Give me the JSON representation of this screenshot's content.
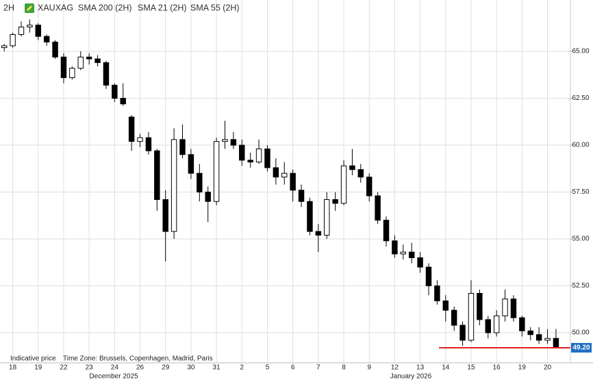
{
  "header": {
    "interval": "2H",
    "symbol": "XAUXAG",
    "indicators": [
      "SMA 200 (2H)",
      "SMA 21 (2H)",
      "SMA 55 (2H)"
    ]
  },
  "footer": {
    "note": "Indicative price",
    "timezone": "Time Zone: Brussels, Copenhagen, Madrid, Paris"
  },
  "chart_data": {
    "type": "candlestick",
    "categories": [
      null,
      "18",
      null,
      null,
      "19",
      null,
      null,
      "22",
      null,
      null,
      "23",
      null,
      null,
      "24",
      null,
      null,
      "26",
      null,
      null,
      "29",
      null,
      null,
      "30",
      null,
      null,
      "31",
      null,
      null,
      "2",
      null,
      null,
      "5",
      null,
      null,
      "6",
      null,
      null,
      "7",
      null,
      null,
      "8",
      null,
      null,
      "9",
      null,
      null,
      "12",
      null,
      null,
      "13",
      null,
      null,
      "14",
      null,
      null,
      "15",
      null,
      null,
      "16",
      null,
      null,
      "19",
      null,
      null,
      "20",
      null
    ],
    "months": [
      "December 2025",
      "January 2026"
    ],
    "open": [
      65.2,
      65.3,
      65.9,
      66.3,
      66.4,
      65.8,
      65.5,
      64.7,
      63.6,
      64.1,
      64.7,
      64.6,
      64.4,
      63.2,
      62.5,
      61.5,
      60.2,
      60.4,
      59.7,
      57.1,
      55.4,
      60.3,
      59.5,
      58.5,
      57.5,
      57.0,
      60.2,
      60.3,
      60.0,
      59.2,
      59.1,
      59.8,
      58.8,
      58.3,
      58.5,
      57.6,
      57.0,
      55.4,
      55.2,
      57.1,
      56.9,
      58.9,
      58.7,
      58.3,
      57.3,
      56.0,
      54.9,
      54.2,
      54.3,
      54.0,
      53.5,
      52.5,
      51.7,
      51.2,
      50.4,
      49.6,
      52.1,
      50.7,
      50.0,
      50.9,
      51.8,
      50.8,
      50.1,
      49.9,
      49.6,
      49.7
    ],
    "high": [
      65.4,
      66.0,
      66.6,
      66.7,
      66.5,
      65.9,
      65.6,
      64.9,
      64.2,
      65.0,
      64.9,
      64.8,
      64.5,
      63.3,
      63.3,
      61.6,
      60.6,
      60.7,
      59.8,
      57.6,
      60.9,
      61.1,
      59.8,
      59.0,
      57.8,
      60.4,
      61.3,
      60.7,
      60.3,
      59.6,
      60.3,
      60.0,
      59.3,
      59.1,
      58.7,
      57.9,
      57.2,
      55.8,
      57.5,
      57.5,
      59.2,
      59.8,
      59.0,
      58.5,
      57.5,
      56.2,
      55.2,
      54.7,
      54.8,
      54.3,
      53.7,
      52.8,
      52.0,
      51.4,
      50.6,
      52.8,
      52.3,
      50.9,
      51.2,
      52.3,
      52.0,
      50.9,
      50.3,
      50.3,
      50.2,
      50.2
    ],
    "low": [
      65.0,
      65.2,
      65.8,
      66.0,
      65.6,
      65.3,
      64.6,
      63.3,
      63.5,
      64.0,
      64.3,
      64.2,
      63.0,
      62.3,
      62.1,
      59.7,
      59.9,
      59.5,
      56.5,
      53.8,
      55.0,
      59.3,
      58.2,
      57.0,
      55.9,
      56.8,
      59.8,
      59.8,
      58.9,
      58.8,
      59.0,
      58.6,
      57.9,
      57.9,
      57.0,
      56.7,
      55.2,
      54.3,
      55.0,
      56.5,
      56.8,
      58.4,
      58.0,
      57.0,
      55.8,
      54.6,
      54.0,
      53.9,
      53.7,
      53.2,
      52.0,
      51.5,
      50.6,
      50.1,
      49.3,
      49.5,
      50.4,
      49.7,
      49.8,
      50.6,
      50.6,
      49.8,
      49.6,
      49.4,
      49.4,
      49.2
    ],
    "close": [
      65.3,
      65.9,
      66.3,
      66.4,
      65.8,
      65.5,
      64.7,
      63.6,
      64.1,
      64.7,
      64.6,
      64.4,
      63.2,
      62.5,
      62.2,
      60.2,
      60.4,
      59.7,
      57.1,
      55.4,
      60.3,
      59.5,
      58.5,
      57.5,
      57.0,
      60.2,
      60.3,
      60.0,
      59.2,
      59.1,
      59.8,
      58.8,
      58.3,
      58.5,
      57.6,
      57.0,
      55.4,
      55.2,
      57.1,
      56.9,
      58.9,
      58.7,
      58.3,
      57.3,
      56.0,
      54.9,
      54.2,
      54.3,
      54.0,
      53.5,
      52.5,
      51.7,
      51.2,
      50.4,
      49.6,
      52.1,
      50.7,
      50.0,
      50.9,
      51.8,
      50.8,
      50.1,
      49.9,
      49.6,
      49.7,
      49.2
    ],
    "ylim": [
      48.87,
      67.74
    ],
    "yticks": [
      {
        "value": 50,
        "label": "50.00"
      },
      {
        "value": 52.5,
        "label": "52.50"
      },
      {
        "value": 55,
        "label": "55.00"
      },
      {
        "value": 57.5,
        "label": "57.50"
      },
      {
        "value": 60,
        "label": "60.00"
      },
      {
        "value": 62.5,
        "label": "62.50"
      },
      {
        "value": 65,
        "label": "65.00"
      }
    ],
    "last_price": {
      "value": 49.2,
      "label": "49.20"
    },
    "up_color": "#ffffff",
    "down_color": "#000000",
    "level_color": "#e0201b",
    "tag_color": "#1f6fc5",
    "grid": true
  }
}
